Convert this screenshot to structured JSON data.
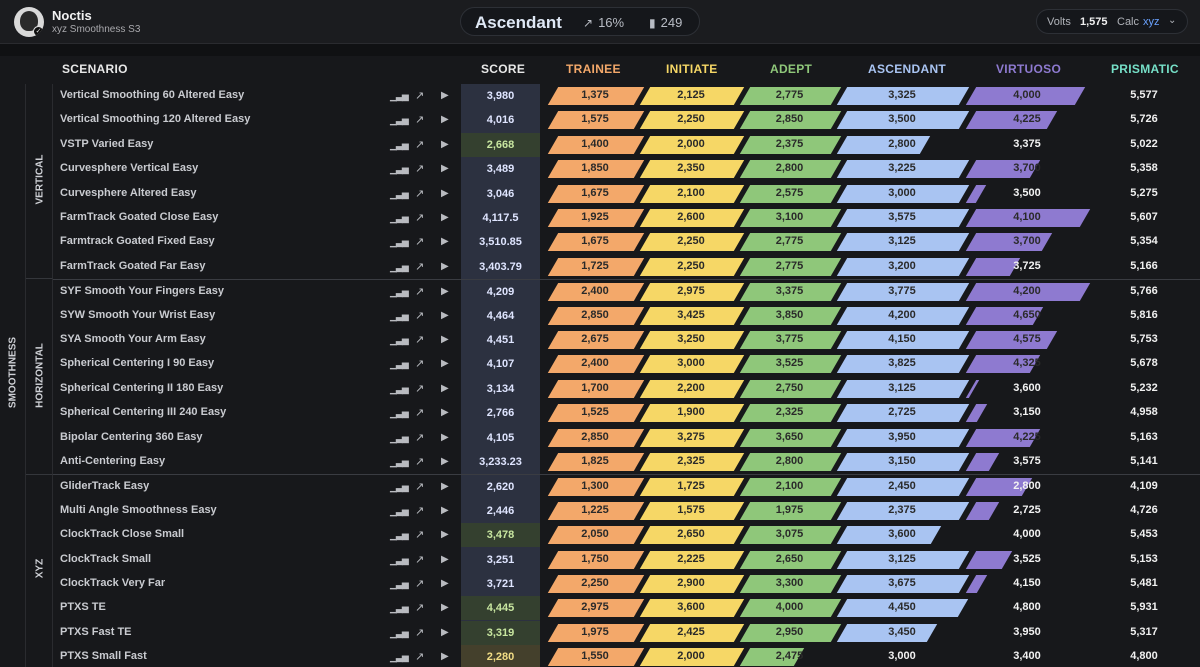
{
  "profile": {
    "name": "Noctis",
    "subtitle": "xyz Smoothness S3"
  },
  "rank": {
    "title": "Ascendant",
    "percent": "16%",
    "count": "249"
  },
  "volts": {
    "label": "Volts",
    "value": "1,575",
    "calc_label": "Calc",
    "calc_value": "xyz"
  },
  "columns": {
    "scenario": "SCENARIO",
    "score": "SCORE",
    "trainee": "TRAINEE",
    "initiate": "INITIATE",
    "adept": "ADEPT",
    "ascendant": "ASCENDANT",
    "virtuoso": "VIRTUOSO",
    "prismatic": "PRISMATIC"
  },
  "tier_colors": {
    "trainee": "#f3a86a",
    "initiate": "#f6d766",
    "adept": "#8fc77a",
    "ascendant": "#a9c4f2",
    "virtuoso": "#8e7ad0",
    "prismatic": "#76e0c8"
  },
  "groups": {
    "main": "SMOOTHNESS",
    "sub": [
      "VERTICAL",
      "HORIZONTAL",
      "XYZ"
    ]
  },
  "rows": [
    {
      "name": "Vertical Smoothing 60 Altered Easy",
      "score": "3,980",
      "t": [
        "1,375",
        "2,125",
        "2,775",
        "3,325",
        "4,000",
        "5,577"
      ],
      "progress": [
        1,
        1,
        1,
        1,
        0.96,
        0
      ]
    },
    {
      "name": "Vertical Smoothing 120 Altered Easy",
      "score": "4,016",
      "t": [
        "1,575",
        "2,250",
        "2,850",
        "3,500",
        "4,225",
        "5,726"
      ],
      "progress": [
        1,
        1,
        1,
        1,
        0.71,
        0
      ]
    },
    {
      "name": "VSTP Varied Easy",
      "score": "2,668",
      "t": [
        "1,400",
        "2,000",
        "2,375",
        "2,800",
        "3,375",
        "5,022"
      ],
      "progress": [
        1,
        1,
        1,
        0.68,
        0,
        0
      ],
      "hl": "green"
    },
    {
      "name": "Curvesphere Vertical Easy",
      "score": "3,489",
      "t": [
        "1,850",
        "2,350",
        "2,800",
        "3,225",
        "3,700",
        "5,358"
      ],
      "progress": [
        1,
        1,
        1,
        1,
        0.56,
        0
      ]
    },
    {
      "name": "Curvesphere Altered Easy",
      "score": "3,046",
      "t": [
        "1,675",
        "2,100",
        "2,575",
        "3,000",
        "3,500",
        "5,275"
      ],
      "progress": [
        1,
        1,
        1,
        1,
        0.09,
        0
      ]
    },
    {
      "name": "FarmTrack Goated Close Easy",
      "score": "4,117.5",
      "t": [
        "1,925",
        "2,600",
        "3,100",
        "3,575",
        "4,100",
        "5,607"
      ],
      "progress": [
        1,
        1,
        1,
        1,
        1,
        0.01
      ]
    },
    {
      "name": "Farmtrack Goated Fixed Easy",
      "score": "3,510.85",
      "t": [
        "1,675",
        "2,250",
        "2,775",
        "3,125",
        "3,700",
        "5,354"
      ],
      "progress": [
        1,
        1,
        1,
        1,
        0.67,
        0
      ]
    },
    {
      "name": "FarmTrack Goated Far Easy",
      "score": "3,403.79",
      "t": [
        "1,725",
        "2,250",
        "2,775",
        "3,200",
        "3,725",
        "5,166"
      ],
      "progress": [
        1,
        1,
        1,
        1,
        0.39,
        0
      ]
    },
    {
      "name": "SYF Smooth Your Fingers Easy",
      "score": "4,209",
      "t": [
        "2,400",
        "2,975",
        "3,375",
        "3,775",
        "4,200",
        "5,766"
      ],
      "progress": [
        1,
        1,
        1,
        1,
        1,
        0.01
      ]
    },
    {
      "name": "SYW Smooth Your Wrist Easy",
      "score": "4,464",
      "t": [
        "2,850",
        "3,425",
        "3,850",
        "4,200",
        "4,650",
        "5,816"
      ],
      "progress": [
        1,
        1,
        1,
        1,
        0.59,
        0
      ]
    },
    {
      "name": "SYA Smooth Your Arm Easy",
      "score": "4,451",
      "t": [
        "2,675",
        "3,250",
        "3,775",
        "4,150",
        "4,575",
        "5,753"
      ],
      "progress": [
        1,
        1,
        1,
        1,
        0.71,
        0
      ]
    },
    {
      "name": "Spherical Centering I 90 Easy",
      "score": "4,107",
      "t": [
        "2,400",
        "3,000",
        "3,525",
        "3,825",
        "4,325",
        "5,678"
      ],
      "progress": [
        1,
        1,
        1,
        1,
        0.56,
        0
      ]
    },
    {
      "name": "Spherical Centering II 180 Easy",
      "score": "3,134",
      "t": [
        "1,700",
        "2,200",
        "2,750",
        "3,125",
        "3,600",
        "5,232"
      ],
      "progress": [
        1,
        1,
        1,
        1,
        0.02,
        0
      ]
    },
    {
      "name": "Spherical Centering III 240 Easy",
      "score": "2,766",
      "t": [
        "1,525",
        "1,900",
        "2,325",
        "2,725",
        "3,150",
        "4,958"
      ],
      "progress": [
        1,
        1,
        1,
        1,
        0.1,
        0
      ]
    },
    {
      "name": "Bipolar Centering 360 Easy",
      "score": "4,105",
      "t": [
        "2,850",
        "3,275",
        "3,650",
        "3,950",
        "4,225",
        "5,163"
      ],
      "progress": [
        1,
        1,
        1,
        1,
        0.56,
        0
      ]
    },
    {
      "name": "Anti-Centering Easy",
      "score": "3,233.23",
      "t": [
        "1,825",
        "2,325",
        "2,800",
        "3,150",
        "3,575",
        "5,141"
      ],
      "progress": [
        1,
        1,
        1,
        1,
        0.2,
        0
      ]
    },
    {
      "name": "GliderTrack Easy",
      "score": "2,620",
      "t": [
        "1,300",
        "1,725",
        "2,100",
        "2,450",
        "2,800",
        "4,109"
      ],
      "progress": [
        1,
        1,
        1,
        1,
        0.49,
        0
      ]
    },
    {
      "name": "Multi Angle Smoothness Easy",
      "score": "2,446",
      "t": [
        "1,225",
        "1,575",
        "1,975",
        "2,375",
        "2,725",
        "4,726"
      ],
      "progress": [
        1,
        1,
        1,
        1,
        0.2,
        0
      ]
    },
    {
      "name": "ClockTrack Close Small",
      "score": "3,478",
      "t": [
        "2,050",
        "2,650",
        "3,075",
        "3,600",
        "4,000",
        "5,453"
      ],
      "progress": [
        1,
        1,
        1,
        0.77,
        0,
        0
      ],
      "hl": "green"
    },
    {
      "name": "ClockTrack Small",
      "score": "3,251",
      "t": [
        "1,750",
        "2,225",
        "2,650",
        "3,125",
        "3,525",
        "5,153"
      ],
      "progress": [
        1,
        1,
        1,
        1,
        0.32,
        0
      ]
    },
    {
      "name": "ClockTrack Very Far",
      "score": "3,721",
      "t": [
        "2,250",
        "2,900",
        "3,300",
        "3,675",
        "4,150",
        "5,481"
      ],
      "progress": [
        1,
        1,
        1,
        1,
        0.1,
        0
      ]
    },
    {
      "name": "PTXS TE",
      "score": "4,445",
      "t": [
        "2,975",
        "3,600",
        "4,000",
        "4,450",
        "4,800",
        "5,931"
      ],
      "progress": [
        1,
        1,
        1,
        0.99,
        0,
        0
      ],
      "hl": "green"
    },
    {
      "name": "PTXS Fast TE",
      "score": "3,319",
      "t": [
        "1,975",
        "2,425",
        "2,950",
        "3,450",
        "3,950",
        "5,317"
      ],
      "progress": [
        1,
        1,
        1,
        0.74,
        0,
        0
      ],
      "hl": "green"
    },
    {
      "name": "PTXS Small Fast",
      "score": "2,280",
      "t": [
        "1,550",
        "2,000",
        "2,475",
        "3,000",
        "3,400",
        "4,800"
      ],
      "progress": [
        1,
        1,
        0.59,
        0,
        0,
        0
      ],
      "hl": "yellow"
    }
  ]
}
